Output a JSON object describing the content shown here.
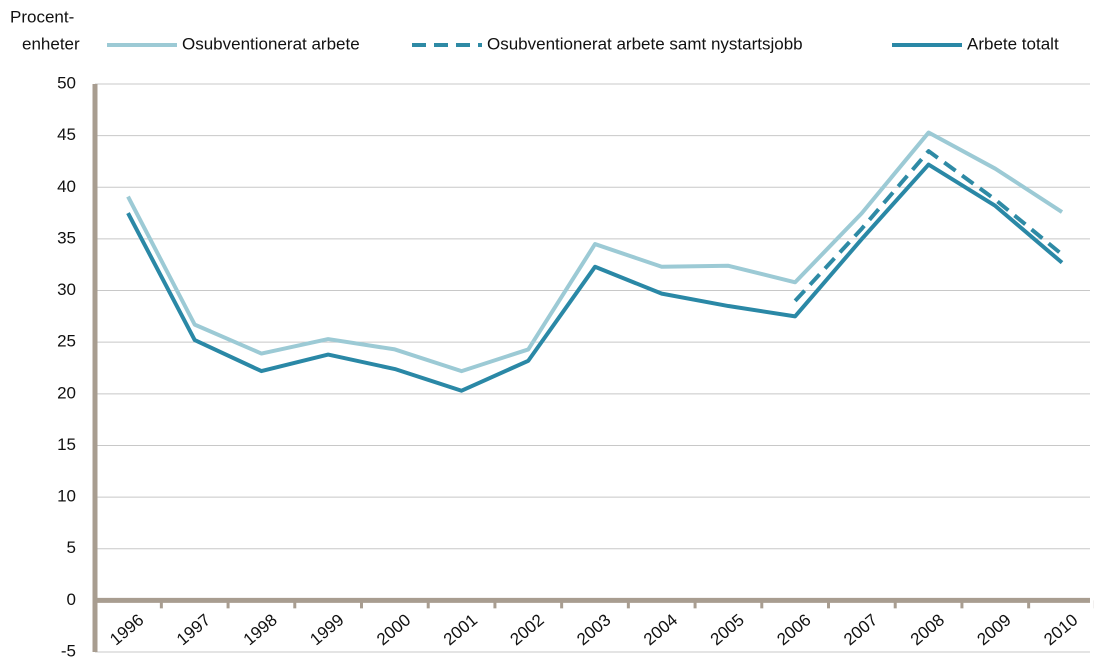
{
  "chart_data": {
    "type": "line",
    "ylabel": [
      "Procent-",
      "enheter"
    ],
    "categories": [
      "1996",
      "1997",
      "1998",
      "1999",
      "2000",
      "2001",
      "2002",
      "2003",
      "2004",
      "2005",
      "2006",
      "2007",
      "2008",
      "2009",
      "2010"
    ],
    "series": [
      {
        "name": "Osubventionerat arbete",
        "color": "#9ccad5",
        "dash": false,
        "values": [
          39.1,
          26.7,
          23.9,
          25.3,
          24.3,
          22.2,
          24.3,
          34.5,
          32.3,
          32.4,
          30.8,
          37.5,
          45.3,
          41.8,
          37.6
        ]
      },
      {
        "name": "Osubventionerat arbete samt nystartsjobb",
        "color": "#2e8aa5",
        "dash": true,
        "values": [
          null,
          null,
          null,
          null,
          null,
          null,
          null,
          null,
          null,
          null,
          29.0,
          36.0,
          43.5,
          38.8,
          33.5
        ]
      },
      {
        "name": "Arbete totalt",
        "color": "#2a88a6",
        "dash": false,
        "values": [
          37.5,
          25.2,
          22.2,
          23.8,
          22.4,
          20.3,
          23.2,
          32.3,
          29.7,
          28.5,
          27.5,
          35.0,
          42.2,
          38.2,
          32.7
        ]
      }
    ],
    "ylim": [
      -5,
      50
    ],
    "yticks": [
      -5,
      0,
      5,
      10,
      15,
      20,
      25,
      30,
      35,
      40,
      45,
      50
    ],
    "grid": true
  }
}
